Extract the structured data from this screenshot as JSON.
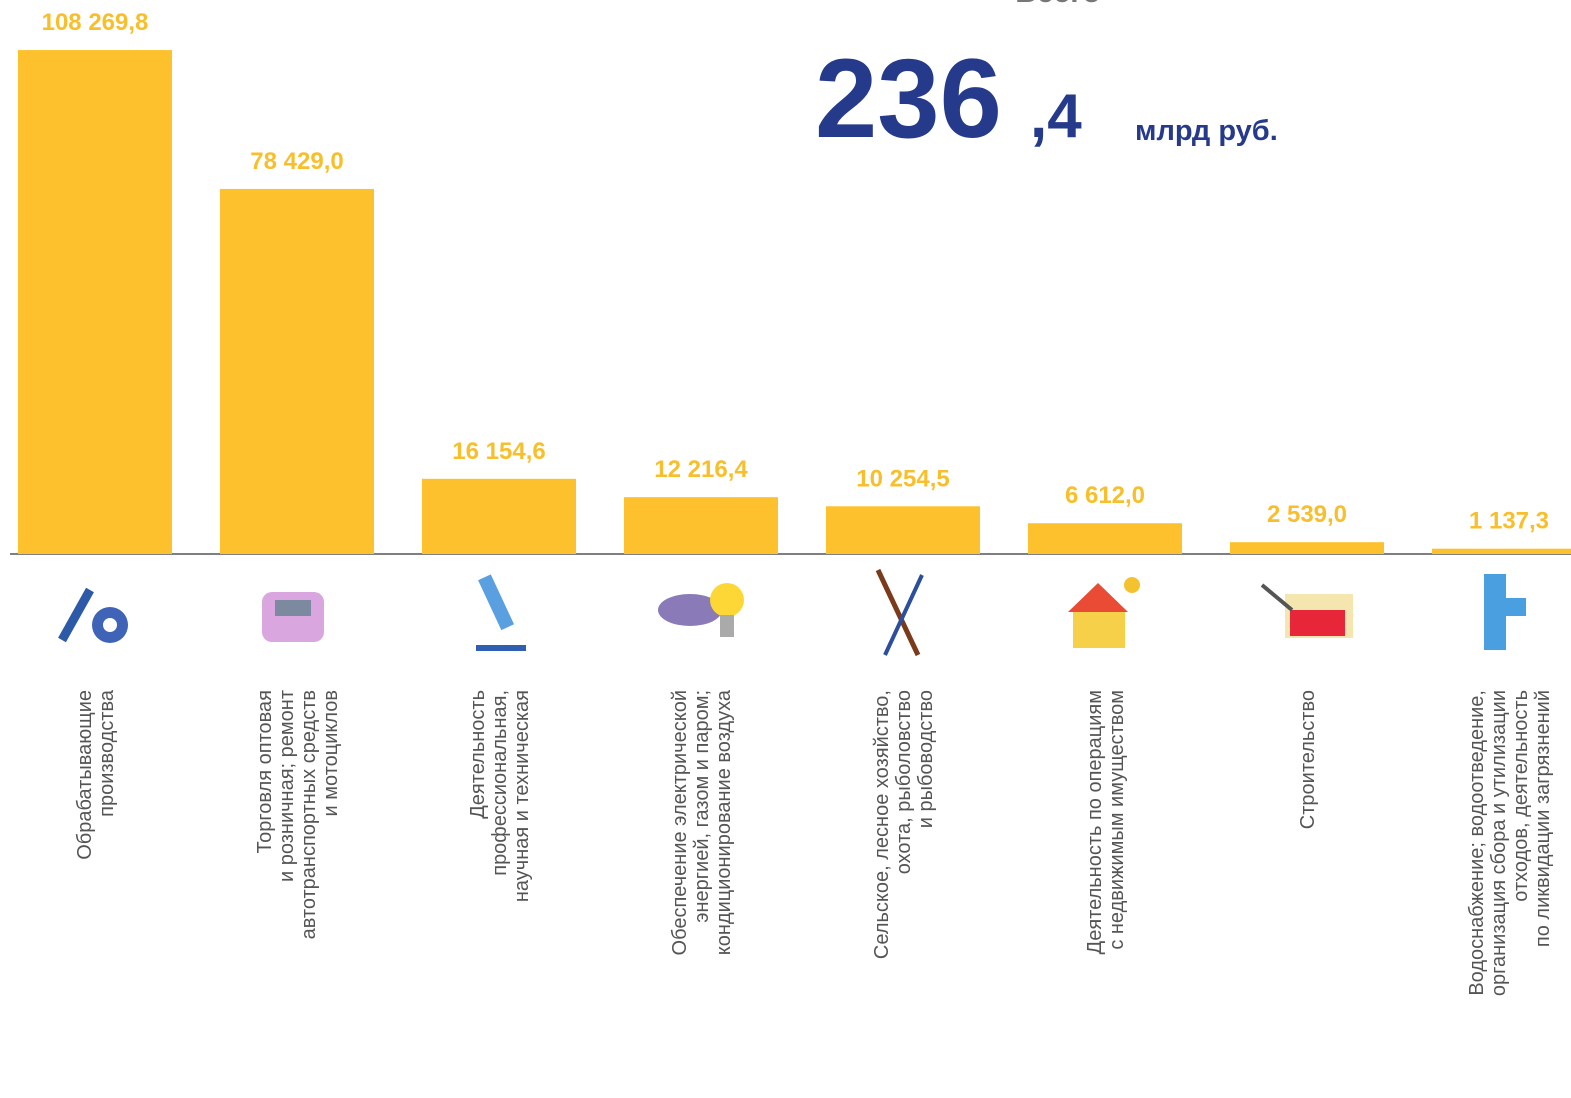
{
  "chart_data": {
    "type": "bar",
    "total": {
      "label": "Всего",
      "integer": "236",
      "fraction": ",4",
      "unit": "млрд руб."
    },
    "categories": [
      [
        "Обрабатывающие",
        "производства"
      ],
      [
        "Торговля оптовая",
        "и розничная; ремонт",
        "автотранспортных средств",
        "и мотоциклов"
      ],
      [
        "Деятельность",
        "профессиональная,",
        "научная и техническая"
      ],
      [
        "Обеспечение электрической",
        "энергией, газом и паром;",
        "кондиционирование воздуха"
      ],
      [
        "Сельское, лесное хозяйство,",
        "охота, рыболовство",
        "и рыбоводство"
      ],
      [
        "Деятельность по операциям",
        "с недвижимым имуществом"
      ],
      [
        "Строительство"
      ],
      [
        "Водоснабжение; водоотведение,",
        "организация сбора и утилизации",
        "отходов, деятельность",
        "по ликвидации загрязнений"
      ]
    ],
    "values": [
      108269.8,
      78429.0,
      16154.6,
      12216.4,
      10254.5,
      6612.0,
      2539.0,
      1137.3
    ],
    "value_labels": [
      "108 269,8",
      "78 429,0",
      "16 154,6",
      "12 216,4",
      "10 254,5",
      "6 612,0",
      "2 539,0",
      "1 137,3"
    ],
    "color": "#fdc12d",
    "ylim": [
      0,
      110000
    ]
  }
}
